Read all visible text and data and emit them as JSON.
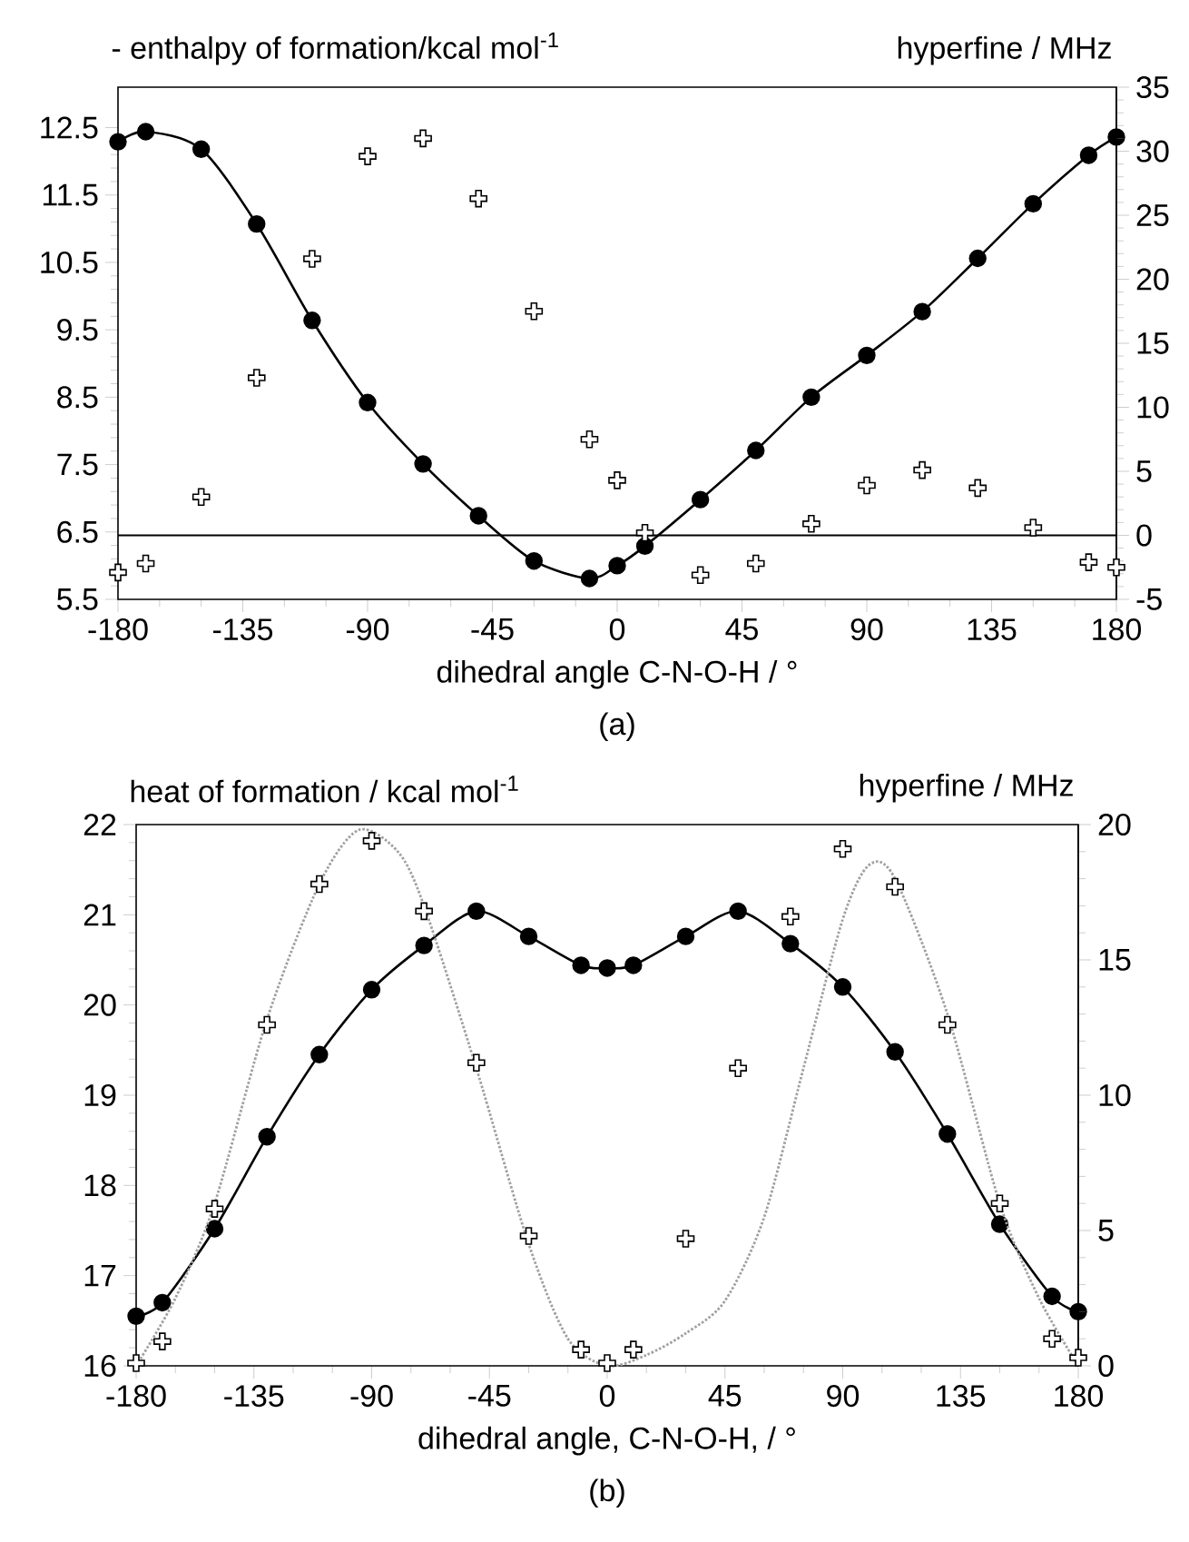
{
  "chart_data": [
    {
      "type": "line",
      "ylabel": "- enthalpy of formation/kcal mol$^{-1}$",
      "y2label": "hyperfine / MHz",
      "xlabel": "dihedral angle C-N-O-H / °",
      "annotations": [
        "(a)"
      ],
      "xlim": [
        -180,
        180
      ],
      "xticks": [
        -180,
        -135,
        -90,
        -45,
        0,
        45,
        90,
        135,
        180
      ],
      "ylim": [
        5.5,
        13.1
      ],
      "yticks": [
        5.5,
        6.5,
        7.5,
        8.5,
        9.5,
        10.5,
        11.5,
        12.5
      ],
      "y2lim": [
        -5,
        35
      ],
      "y2ticks": [
        -5,
        0,
        5,
        10,
        15,
        20,
        25,
        30,
        35
      ],
      "x": [
        -180,
        -170,
        -150,
        -130,
        -110,
        -90,
        -70,
        -50,
        -30,
        -10,
        0,
        10,
        30,
        50,
        70,
        90,
        110,
        130,
        150,
        170,
        180
      ],
      "series": [
        {
          "color": "#000000",
          "marker": "circle",
          "values": [
            12.29,
            12.44,
            12.18,
            11.07,
            9.64,
            8.42,
            7.51,
            6.74,
            6.07,
            5.81,
            6.0,
            6.29,
            6.98,
            7.71,
            8.5,
            9.12,
            9.77,
            10.56,
            11.37,
            12.09,
            12.36
          ]
        },
        {
          "type": "scatter",
          "axis": "y2",
          "color": "#000000",
          "marker": "cross",
          "values": [
            -2.9,
            -2.2,
            3.0,
            12.3,
            21.6,
            29.6,
            31.0,
            26.3,
            17.5,
            7.5,
            4.3,
            0.2,
            -3.1,
            -2.2,
            0.9,
            3.9,
            5.1,
            3.7,
            0.6,
            -2.1,
            -2.5
          ]
        }
      ],
      "ref_lines": [
        {
          "axis": "y2",
          "value": 0,
          "color": "#000000"
        }
      ]
    },
    {
      "type": "line",
      "ylabel": "heat of formation / kcal mol$^{-1}$",
      "y2label": "hyperfine / MHz",
      "xlabel": "dihedral angle, C-N-O-H, / °",
      "annotations": [
        "(b)"
      ],
      "xlim": [
        -180,
        180
      ],
      "xticks": [
        -180,
        -135,
        -90,
        -45,
        0,
        45,
        90,
        135,
        180
      ],
      "ylim": [
        16,
        22
      ],
      "yticks": [
        16,
        17,
        18,
        19,
        20,
        21,
        22
      ],
      "y2lim": [
        0,
        20
      ],
      "y2ticks": [
        0,
        5,
        10,
        15,
        20
      ],
      "x": [
        -180,
        -170,
        -150,
        -130,
        -110,
        -90,
        -70,
        -50,
        -30,
        -10,
        0,
        10,
        30,
        50,
        70,
        90,
        110,
        130,
        150,
        170,
        180
      ],
      "series": [
        {
          "axis": "y2",
          "color": "#a0a0a0",
          "marker": "none",
          "line_style": "dotted",
          "x": [
            -180,
            -165,
            -150,
            -130,
            -110,
            -95,
            -80,
            -70,
            -50,
            -30,
            -15,
            0,
            15,
            30,
            45,
            60,
            75,
            90,
            100,
            110,
            130,
            150,
            165,
            180
          ],
          "values": [
            0,
            2.5,
            6,
            12.8,
            17.8,
            19.8,
            19,
            17,
            11,
            4.5,
            1,
            0,
            0.4,
            1.2,
            2.4,
            5.5,
            11,
            16.5,
            18.5,
            18,
            13,
            6,
            2.5,
            0
          ]
        },
        {
          "color": "#000000",
          "marker": "circle",
          "values": [
            16.55,
            16.7,
            17.52,
            18.54,
            19.45,
            20.17,
            20.66,
            21.04,
            20.76,
            20.44,
            20.41,
            20.44,
            20.76,
            21.04,
            20.68,
            20.2,
            19.48,
            18.57,
            17.57,
            16.77,
            16.6
          ]
        },
        {
          "type": "scatter",
          "axis": "y2",
          "color": "#000000",
          "marker": "cross",
          "values": [
            0.1,
            0.9,
            5.8,
            12.6,
            17.8,
            19.4,
            16.8,
            11.2,
            4.8,
            0.6,
            0.1,
            0.6,
            4.7,
            11.0,
            16.6,
            19.1,
            17.7,
            12.6,
            6.0,
            1.0,
            0.3
          ]
        }
      ]
    }
  ]
}
